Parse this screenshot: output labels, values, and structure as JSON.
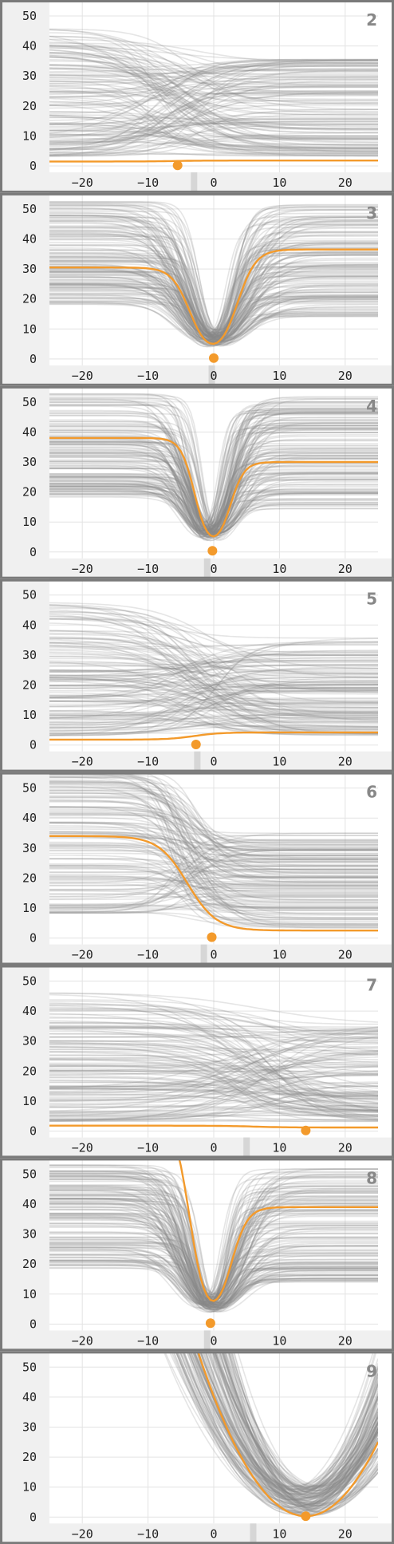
{
  "chart_data": [
    {
      "type": "line",
      "label": "2",
      "xlim": [
        -25,
        25
      ],
      "ylim": [
        0,
        50
      ],
      "x_ticks": [
        -20,
        -10,
        0,
        10,
        20
      ],
      "y_ticks": [
        0,
        10,
        20,
        30,
        40,
        50
      ],
      "x_tick_labels": [
        "−20",
        "−10",
        "0",
        "10",
        "20"
      ],
      "y_tick_labels": [
        "0",
        "10",
        "20",
        "30",
        "40",
        "50"
      ],
      "grid": true,
      "curve_shape": "step",
      "n_background_curves": 140,
      "center": -6,
      "width": 4,
      "highlight": {
        "y_left": 1.5,
        "y_right": 1.8,
        "x_min": -5.5,
        "y_min": 0.2
      },
      "marker_band_x": -3,
      "background_color": "#888888",
      "highlight_color": "#f39a2b"
    },
    {
      "type": "line",
      "label": "3",
      "xlim": [
        -25,
        25
      ],
      "ylim": [
        0,
        50
      ],
      "x_ticks": [
        -20,
        -10,
        0,
        10,
        20
      ],
      "y_ticks": [
        0,
        10,
        20,
        30,
        40,
        50
      ],
      "x_tick_labels": [
        "−20",
        "−10",
        "0",
        "10",
        "20"
      ],
      "y_tick_labels": [
        "0",
        "10",
        "20",
        "30",
        "40",
        "50"
      ],
      "grid": true,
      "curve_shape": "valley",
      "n_background_curves": 140,
      "center": 0,
      "width": 4,
      "highlight": {
        "y_left": 30.5,
        "y_right": 36.5,
        "x_min": 0,
        "y_min": 0.3
      },
      "marker_band_x": -0.3,
      "background_color": "#888888",
      "highlight_color": "#f39a2b"
    },
    {
      "type": "line",
      "label": "4",
      "xlim": [
        -25,
        25
      ],
      "ylim": [
        0,
        50
      ],
      "x_ticks": [
        -20,
        -10,
        0,
        10,
        20
      ],
      "y_ticks": [
        0,
        10,
        20,
        30,
        40,
        50
      ],
      "x_tick_labels": [
        "−20",
        "−10",
        "0",
        "10",
        "20"
      ],
      "y_tick_labels": [
        "0",
        "10",
        "20",
        "30",
        "40",
        "50"
      ],
      "grid": true,
      "curve_shape": "valley",
      "n_background_curves": 140,
      "center": -0.5,
      "width": 3,
      "highlight": {
        "y_left": 38,
        "y_right": 30,
        "x_min": -0.2,
        "y_min": 0.4
      },
      "marker_band_x": -1,
      "background_color": "#888888",
      "highlight_color": "#f39a2b"
    },
    {
      "type": "line",
      "label": "5",
      "xlim": [
        -25,
        25
      ],
      "ylim": [
        0,
        50
      ],
      "x_ticks": [
        -20,
        -10,
        0,
        10,
        20
      ],
      "y_ticks": [
        0,
        10,
        20,
        30,
        40,
        50
      ],
      "x_tick_labels": [
        "−20",
        "−10",
        "0",
        "10",
        "20"
      ],
      "y_tick_labels": [
        "0",
        "10",
        "20",
        "30",
        "40",
        "50"
      ],
      "grid": true,
      "curve_shape": "step",
      "n_background_curves": 140,
      "center": -3,
      "width": 4,
      "highlight": {
        "y_left": 1.8,
        "y_right": 4.2,
        "x_min": -2.7,
        "y_min": 0.2
      },
      "marker_band_x": -2.5,
      "background_color": "#888888",
      "highlight_color": "#f39a2b"
    },
    {
      "type": "line",
      "label": "6",
      "xlim": [
        -25,
        25
      ],
      "ylim": [
        0,
        50
      ],
      "x_ticks": [
        -20,
        -10,
        0,
        10,
        20
      ],
      "y_ticks": [
        0,
        10,
        20,
        30,
        40,
        50
      ],
      "x_tick_labels": [
        "−20",
        "−10",
        "0",
        "10",
        "20"
      ],
      "y_tick_labels": [
        "0",
        "10",
        "20",
        "30",
        "40",
        "50"
      ],
      "grid": true,
      "curve_shape": "drop",
      "n_background_curves": 140,
      "center": -4,
      "width": 4,
      "highlight": {
        "y_left": 34,
        "y_right": 2.5,
        "x_min": -0.3,
        "y_min": 0.3
      },
      "marker_band_x": -1.5,
      "background_color": "#888888",
      "highlight_color": "#f39a2b"
    },
    {
      "type": "line",
      "label": "7",
      "xlim": [
        -25,
        25
      ],
      "ylim": [
        0,
        50
      ],
      "x_ticks": [
        -20,
        -10,
        0,
        10,
        20
      ],
      "y_ticks": [
        0,
        10,
        20,
        30,
        40,
        50
      ],
      "x_tick_labels": [
        "−20",
        "−10",
        "0",
        "10",
        "20"
      ],
      "y_tick_labels": [
        "0",
        "10",
        "20",
        "30",
        "40",
        "50"
      ],
      "grid": true,
      "curve_shape": "step",
      "n_background_curves": 140,
      "center": 6,
      "width": 5,
      "highlight": {
        "y_left": 1.8,
        "y_right": 1.2,
        "x_min": 14,
        "y_min": 0.2
      },
      "marker_band_x": 5,
      "background_color": "#888888",
      "highlight_color": "#f39a2b"
    },
    {
      "type": "line",
      "label": "8",
      "xlim": [
        -25,
        25
      ],
      "ylim": [
        0,
        50
      ],
      "x_ticks": [
        -20,
        -10,
        0,
        10,
        20
      ],
      "y_ticks": [
        0,
        10,
        20,
        30,
        40,
        50
      ],
      "x_tick_labels": [
        "−20",
        "−10",
        "0",
        "10",
        "20"
      ],
      "y_tick_labels": [
        "0",
        "10",
        "20",
        "30",
        "40",
        "50"
      ],
      "grid": true,
      "curve_shape": "valley",
      "n_background_curves": 140,
      "center": -0.5,
      "width": 3.5,
      "highlight": {
        "y_left": 70,
        "y_right": 39,
        "x_min": -0.5,
        "y_min": 0.3
      },
      "marker_band_x": -1,
      "background_color": "#888888",
      "highlight_color": "#f39a2b"
    },
    {
      "type": "line",
      "label": "9",
      "xlim": [
        -25,
        25
      ],
      "ylim": [
        0,
        50
      ],
      "x_ticks": [
        -20,
        -10,
        0,
        10,
        20
      ],
      "y_ticks": [
        0,
        10,
        20,
        30,
        40,
        50
      ],
      "x_tick_labels": [
        "−20",
        "−10",
        "0",
        "10",
        "20"
      ],
      "y_tick_labels": [
        "0",
        "10",
        "20",
        "30",
        "40",
        "50"
      ],
      "grid": true,
      "curve_shape": "parabola",
      "n_background_curves": 140,
      "center": 14,
      "width": 7,
      "highlight": {
        "y_left": 90,
        "y_right": 90,
        "x_min": 14,
        "y_min": 0.3
      },
      "marker_band_x": 6,
      "background_color": "#888888",
      "highlight_color": "#f39a2b"
    }
  ]
}
